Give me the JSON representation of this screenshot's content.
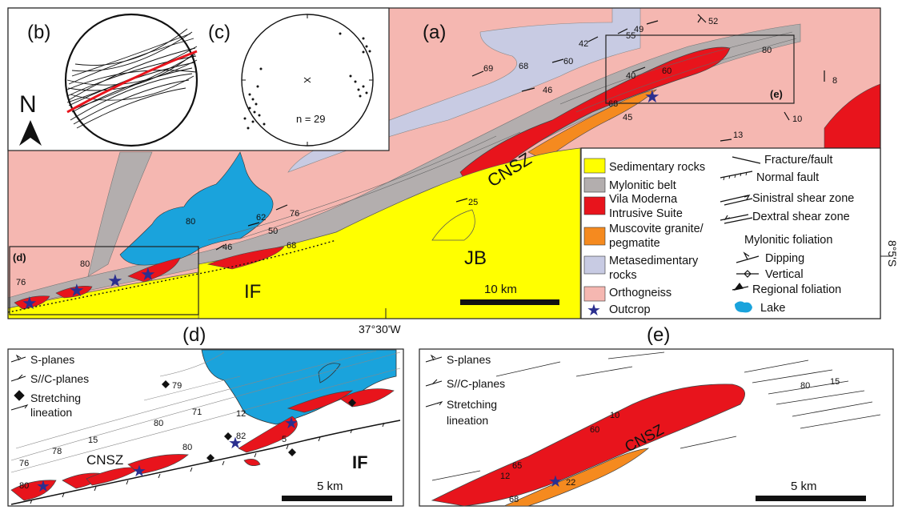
{
  "panels": {
    "a": "(a)",
    "b": "(b)",
    "c": "(c)",
    "d": "(d)",
    "e": "(e)",
    "e_box": "(e)",
    "d_box": "(d)"
  },
  "north": "N",
  "stereonet_c": {
    "n": "n = 29"
  },
  "main_map": {
    "labels": {
      "cnsz": "CNSZ",
      "jb": "JB",
      "if": "IF"
    },
    "scale": "10 km",
    "lon": "37°30'W",
    "lat": "8°5'S",
    "measurements": [
      "52",
      "49",
      "55",
      "42",
      "60",
      "69",
      "68",
      "46",
      "80",
      "40",
      "60",
      "68",
      "45",
      "8",
      "10",
      "13",
      "80",
      "62",
      "76",
      "50",
      "68",
      "46",
      "25",
      "80",
      "76"
    ]
  },
  "legend": {
    "items": [
      {
        "label": "Sedimentary rocks",
        "color": "#ffff00"
      },
      {
        "label": "Mylonitic belt",
        "color": "#b3aeae"
      },
      {
        "label": "Vila Moderna",
        "color": "#e8141c"
      },
      {
        "label": "Intrusive Suite",
        "color": ""
      },
      {
        "label": "Muscovite granite/",
        "color": "#f58a1f"
      },
      {
        "label": "pegmatite",
        "color": ""
      },
      {
        "label": "Metasedimentary",
        "color": "#c8cbe3"
      },
      {
        "label": "rocks",
        "color": ""
      },
      {
        "label": "Orthogneiss",
        "color": "#f5b7b1"
      },
      {
        "label": "Outcrop",
        "color": "#2b2f8f"
      }
    ],
    "symbols": {
      "fracture": "Fracture/fault",
      "normal": "Normal fault",
      "sinistral": "Sinistral shear zone",
      "dextral": "Dextral shear zone",
      "foliation_title": "Mylonitic foliation",
      "dipping": "Dipping",
      "vertical": "Vertical",
      "regional": "Regional foliation",
      "lake": "Lake"
    }
  },
  "inset_d": {
    "legend": [
      "S-planes",
      "S//C-planes",
      "Stretching",
      "lineation"
    ],
    "labels": {
      "cnsz": "CNSZ",
      "if": "IF"
    },
    "scale": "5 km",
    "measurements": [
      "79",
      "71",
      "80",
      "12",
      "82",
      "80",
      "5",
      "15",
      "78",
      "76",
      "80"
    ]
  },
  "inset_e": {
    "legend": [
      "S-planes",
      "S//C-planes",
      "Stretching",
      "lineation"
    ],
    "labels": {
      "cnsz": "CNSZ"
    },
    "scale": "5 km",
    "measurements": [
      "80",
      "15",
      "10",
      "60",
      "12",
      "65",
      "22",
      "68"
    ]
  },
  "colors": {
    "ortho": "#f5b7b1",
    "meta": "#c8cbe3",
    "mylon": "#b3aeae",
    "red": "#e8141c",
    "orange": "#f58a1f",
    "sed": "#ffff00",
    "lake": "#1aa3dc",
    "star": "#2b2f8f"
  }
}
